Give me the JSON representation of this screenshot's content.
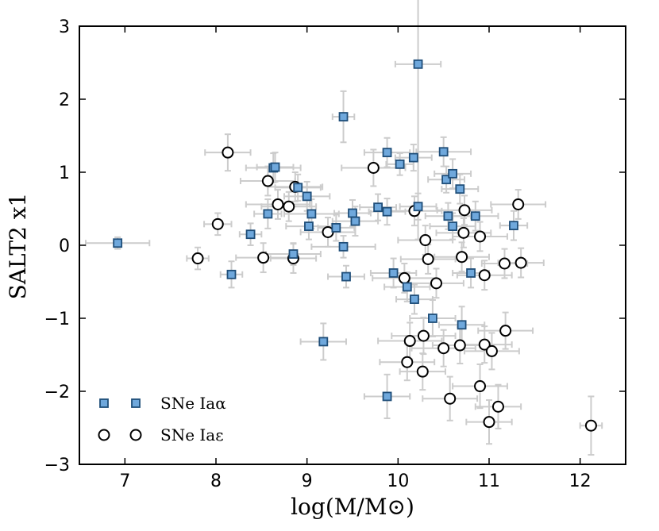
{
  "chart_data": {
    "type": "scatter",
    "title": "",
    "xlabel": "log(M/M⊙)",
    "ylabel": "SALT2  x1",
    "xlim": [
      6.5,
      12.5
    ],
    "ylim": [
      -3,
      3
    ],
    "xticks": [
      7,
      8,
      9,
      10,
      11,
      12
    ],
    "yticks": [
      -3,
      -2,
      -1,
      0,
      1,
      2,
      3
    ],
    "ytick_labels": [
      "−3",
      "−2",
      "−1",
      "0",
      "1",
      "2",
      "3"
    ],
    "grid": false,
    "legend_position": "bottom-left",
    "series": [
      {
        "name": "SNe Iaα",
        "marker": "square",
        "color": "#6fa8dc",
        "edge_color": "#1f4e79",
        "points": [
          {
            "x": 6.92,
            "y": 0.03,
            "xerr": 0.35,
            "yerr": 0.08
          },
          {
            "x": 8.17,
            "y": -0.4,
            "xerr": 0.12,
            "yerr": 0.18
          },
          {
            "x": 8.38,
            "y": 0.15,
            "xerr": 0.12,
            "yerr": 0.15
          },
          {
            "x": 8.57,
            "y": 0.43,
            "xerr": 0.15,
            "yerr": 0.2
          },
          {
            "x": 8.63,
            "y": 1.06,
            "xerr": 0.3,
            "yerr": 0.2
          },
          {
            "x": 8.65,
            "y": 1.07,
            "xerr": 0.2,
            "yerr": 0.2
          },
          {
            "x": 8.85,
            "y": -0.12,
            "xerr": 0.3,
            "yerr": 0.15
          },
          {
            "x": 8.9,
            "y": 0.79,
            "xerr": 0.25,
            "yerr": 0.18
          },
          {
            "x": 9.0,
            "y": 0.67,
            "xerr": 0.25,
            "yerr": 0.2
          },
          {
            "x": 9.02,
            "y": 0.26,
            "xerr": 0.25,
            "yerr": 0.18
          },
          {
            "x": 9.05,
            "y": 0.43,
            "xerr": 0.3,
            "yerr": 0.2
          },
          {
            "x": 9.18,
            "y": -1.32,
            "xerr": 0.25,
            "yerr": 0.25
          },
          {
            "x": 9.32,
            "y": 0.24,
            "xerr": 0.2,
            "yerr": 0.18
          },
          {
            "x": 9.4,
            "y": -0.02,
            "xerr": 0.35,
            "yerr": 0.15
          },
          {
            "x": 9.4,
            "y": 1.76,
            "xerr": 0.12,
            "yerr": 0.35
          },
          {
            "x": 9.43,
            "y": -0.43,
            "xerr": 0.2,
            "yerr": 0.15
          },
          {
            "x": 9.5,
            "y": 0.44,
            "xerr": 0.2,
            "yerr": 0.18
          },
          {
            "x": 9.53,
            "y": 0.33,
            "xerr": 0.25,
            "yerr": 0.2
          },
          {
            "x": 9.78,
            "y": 0.52,
            "xerr": 0.2,
            "yerr": 0.18
          },
          {
            "x": 9.88,
            "y": 0.46,
            "xerr": 0.2,
            "yerr": 0.18
          },
          {
            "x": 9.88,
            "y": 1.27,
            "xerr": 0.25,
            "yerr": 0.2
          },
          {
            "x": 9.88,
            "y": -2.07,
            "xerr": 0.25,
            "yerr": 0.3
          },
          {
            "x": 9.95,
            "y": -0.38,
            "xerr": 0.25,
            "yerr": 0.2
          },
          {
            "x": 10.02,
            "y": 1.11,
            "xerr": 0.15,
            "yerr": 0.15
          },
          {
            "x": 10.1,
            "y": -0.57,
            "xerr": 0.25,
            "yerr": 0.2
          },
          {
            "x": 10.17,
            "y": 1.2,
            "xerr": 0.2,
            "yerr": 0.18
          },
          {
            "x": 10.18,
            "y": -0.74,
            "xerr": 0.2,
            "yerr": 0.2
          },
          {
            "x": 10.22,
            "y": 0.53,
            "xerr": 0.2,
            "yerr": 0.18
          },
          {
            "x": 10.22,
            "y": 2.48,
            "xerr": 0.25,
            "yerr": 2.4
          },
          {
            "x": 10.38,
            "y": -1.0,
            "xerr": 0.25,
            "yerr": 0.25
          },
          {
            "x": 10.5,
            "y": 1.28,
            "xerr": 0.3,
            "yerr": 0.2
          },
          {
            "x": 10.53,
            "y": 0.9,
            "xerr": 0.2,
            "yerr": 0.18
          },
          {
            "x": 10.55,
            "y": 0.4,
            "xerr": 0.25,
            "yerr": 0.18
          },
          {
            "x": 10.6,
            "y": 0.98,
            "xerr": 0.2,
            "yerr": 0.2
          },
          {
            "x": 10.6,
            "y": 0.26,
            "xerr": 0.25,
            "yerr": 0.18
          },
          {
            "x": 10.68,
            "y": 0.77,
            "xerr": 0.2,
            "yerr": 0.2
          },
          {
            "x": 10.7,
            "y": -1.09,
            "xerr": 0.25,
            "yerr": 0.25
          },
          {
            "x": 10.8,
            "y": -0.38,
            "xerr": 0.2,
            "yerr": 0.2
          },
          {
            "x": 10.85,
            "y": 0.4,
            "xerr": 0.25,
            "yerr": 0.2
          },
          {
            "x": 11.27,
            "y": 0.27,
            "xerr": 0.15,
            "yerr": 0.2
          }
        ]
      },
      {
        "name": "SNe Iaε",
        "marker": "circle",
        "color": "#ffffff",
        "edge_color": "#000000",
        "points": [
          {
            "x": 7.8,
            "y": -0.18,
            "xerr": 0.12,
            "yerr": 0.15
          },
          {
            "x": 8.02,
            "y": 0.29,
            "xerr": 0.15,
            "yerr": 0.15
          },
          {
            "x": 8.13,
            "y": 1.27,
            "xerr": 0.25,
            "yerr": 0.25
          },
          {
            "x": 8.52,
            "y": -0.17,
            "xerr": 0.3,
            "yerr": 0.2
          },
          {
            "x": 8.57,
            "y": 0.88,
            "xerr": 0.3,
            "yerr": 0.2
          },
          {
            "x": 8.68,
            "y": 0.56,
            "xerr": 0.35,
            "yerr": 0.2
          },
          {
            "x": 8.8,
            "y": 0.53,
            "xerr": 0.3,
            "yerr": 0.2
          },
          {
            "x": 8.85,
            "y": -0.18,
            "xerr": 0.25,
            "yerr": 0.2
          },
          {
            "x": 8.87,
            "y": 0.8,
            "xerr": 0.3,
            "yerr": 0.2
          },
          {
            "x": 9.23,
            "y": 0.18,
            "xerr": 0.3,
            "yerr": 0.2
          },
          {
            "x": 9.73,
            "y": 1.06,
            "xerr": 0.35,
            "yerr": 0.25
          },
          {
            "x": 10.07,
            "y": -0.45,
            "xerr": 0.35,
            "yerr": 0.2
          },
          {
            "x": 10.1,
            "y": -1.6,
            "xerr": 0.3,
            "yerr": 0.25
          },
          {
            "x": 10.13,
            "y": -1.31,
            "xerr": 0.35,
            "yerr": 0.25
          },
          {
            "x": 10.18,
            "y": 0.47,
            "xerr": 0.3,
            "yerr": 0.2
          },
          {
            "x": 10.27,
            "y": -1.73,
            "xerr": 0.25,
            "yerr": 0.25
          },
          {
            "x": 10.28,
            "y": -1.24,
            "xerr": 0.35,
            "yerr": 0.25
          },
          {
            "x": 10.3,
            "y": 0.07,
            "xerr": 0.3,
            "yerr": 0.2
          },
          {
            "x": 10.33,
            "y": -0.19,
            "xerr": 0.3,
            "yerr": 0.2
          },
          {
            "x": 10.42,
            "y": -0.52,
            "xerr": 0.3,
            "yerr": 0.2
          },
          {
            "x": 10.5,
            "y": -1.41,
            "xerr": 0.35,
            "yerr": 0.25
          },
          {
            "x": 10.57,
            "y": -2.1,
            "xerr": 0.3,
            "yerr": 0.3
          },
          {
            "x": 10.68,
            "y": -1.37,
            "xerr": 0.3,
            "yerr": 0.25
          },
          {
            "x": 10.7,
            "y": -0.16,
            "xerr": 0.3,
            "yerr": 0.2
          },
          {
            "x": 10.72,
            "y": 0.17,
            "xerr": 0.3,
            "yerr": 0.2
          },
          {
            "x": 10.73,
            "y": 0.48,
            "xerr": 0.3,
            "yerr": 0.2
          },
          {
            "x": 10.9,
            "y": -1.93,
            "xerr": 0.3,
            "yerr": 0.3
          },
          {
            "x": 10.9,
            "y": 0.12,
            "xerr": 0.3,
            "yerr": 0.2
          },
          {
            "x": 10.95,
            "y": -0.41,
            "xerr": 0.3,
            "yerr": 0.2
          },
          {
            "x": 10.95,
            "y": -1.36,
            "xerr": 0.3,
            "yerr": 0.25
          },
          {
            "x": 11.0,
            "y": -2.42,
            "xerr": 0.25,
            "yerr": 0.3
          },
          {
            "x": 11.03,
            "y": -1.45,
            "xerr": 0.3,
            "yerr": 0.25
          },
          {
            "x": 11.1,
            "y": -2.21,
            "xerr": 0.25,
            "yerr": 0.3
          },
          {
            "x": 11.17,
            "y": -0.25,
            "xerr": 0.25,
            "yerr": 0.2
          },
          {
            "x": 11.18,
            "y": -1.17,
            "xerr": 0.3,
            "yerr": 0.25
          },
          {
            "x": 11.32,
            "y": 0.56,
            "xerr": 0.3,
            "yerr": 0.2
          },
          {
            "x": 11.35,
            "y": -0.24,
            "xerr": 0.25,
            "yerr": 0.2
          },
          {
            "x": 12.12,
            "y": -2.47,
            "xerr": 0.12,
            "yerr": 0.4
          }
        ]
      }
    ],
    "errorbar_color": "#cccccc"
  }
}
